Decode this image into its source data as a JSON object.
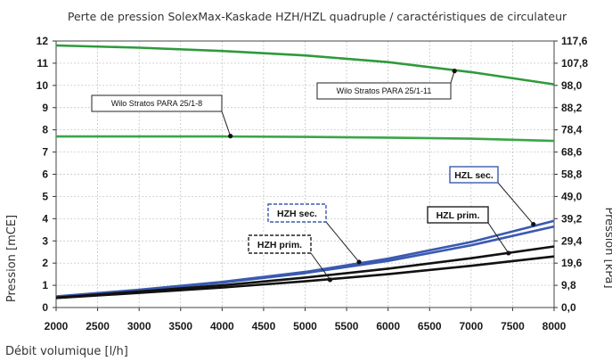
{
  "chart_data": {
    "type": "line",
    "title": "Perte de pression SolexMax-Kaskade HZH/HZL quadruple / caractéristiques de circulateur",
    "xlabel": "Débit volumique [l/h]",
    "ylabel": "Pression [mCE]",
    "y2label": "Pression [kPa]",
    "xlim": [
      2000,
      8000
    ],
    "ylim": [
      0,
      12
    ],
    "x_ticks": [
      "2000",
      "2500",
      "3000",
      "3500",
      "4000",
      "4500",
      "5000",
      "5500",
      "6000",
      "6500",
      "7000",
      "7500",
      "8000"
    ],
    "y_ticks": [
      "0",
      "1",
      "2",
      "3",
      "4",
      "5",
      "6",
      "7",
      "8",
      "9",
      "10",
      "11",
      "12"
    ],
    "y2_ticks": [
      "0,0",
      "9,8",
      "19,6",
      "29,4",
      "39,2",
      "49,0",
      "58,8",
      "68,6",
      "78,4",
      "88,2",
      "98,0",
      "107,8",
      "117,6"
    ],
    "grid": true,
    "series": [
      {
        "name": "Wilo Stratos PARA 25/1-11",
        "color": "#2e9a3c",
        "style": "solid",
        "points": [
          [
            2000,
            11.8
          ],
          [
            3000,
            11.7
          ],
          [
            4000,
            11.55
          ],
          [
            5000,
            11.35
          ],
          [
            6000,
            11.05
          ],
          [
            7000,
            10.6
          ],
          [
            8000,
            10.05
          ]
        ]
      },
      {
        "name": "Wilo Stratos PARA 25/1-8",
        "color": "#3aa548",
        "style": "solid",
        "points": [
          [
            2000,
            7.7
          ],
          [
            3000,
            7.7
          ],
          [
            4000,
            7.7
          ],
          [
            5000,
            7.68
          ],
          [
            6000,
            7.65
          ],
          [
            7000,
            7.6
          ],
          [
            8000,
            7.5
          ]
        ]
      },
      {
        "name": "HZL sec.",
        "color": "#3a5ab0",
        "style": "solid",
        "points": [
          [
            2000,
            0.5
          ],
          [
            3000,
            0.8
          ],
          [
            4000,
            1.15
          ],
          [
            5000,
            1.6
          ],
          [
            6000,
            2.2
          ],
          [
            7000,
            2.95
          ],
          [
            8000,
            3.9
          ]
        ]
      },
      {
        "name": "HZH sec.",
        "color": "#3a5ab0",
        "style": "solid",
        "points": [
          [
            2000,
            0.48
          ],
          [
            3000,
            0.78
          ],
          [
            4000,
            1.12
          ],
          [
            5000,
            1.55
          ],
          [
            6000,
            2.1
          ],
          [
            7000,
            2.8
          ],
          [
            8000,
            3.65
          ]
        ]
      },
      {
        "name": "HZL prim.",
        "color": "#111111",
        "style": "solid",
        "points": [
          [
            2000,
            0.45
          ],
          [
            3000,
            0.72
          ],
          [
            4000,
            1.0
          ],
          [
            5000,
            1.35
          ],
          [
            6000,
            1.75
          ],
          [
            7000,
            2.22
          ],
          [
            8000,
            2.75
          ]
        ]
      },
      {
        "name": "HZH prim.",
        "color": "#111111",
        "style": "solid",
        "points": [
          [
            2000,
            0.43
          ],
          [
            3000,
            0.66
          ],
          [
            4000,
            0.9
          ],
          [
            5000,
            1.18
          ],
          [
            6000,
            1.5
          ],
          [
            7000,
            1.88
          ],
          [
            8000,
            2.3
          ]
        ]
      }
    ],
    "annotations": [
      {
        "text": "Wilo Stratos PARA 25/1-8",
        "target": [
          4100,
          7.72
        ],
        "border": "solid",
        "bold": false
      },
      {
        "text": "Wilo Stratos PARA 25/1-11",
        "target": [
          6800,
          10.65
        ],
        "border": "solid",
        "bold": false
      },
      {
        "text": "HZL sec.",
        "target": [
          7750,
          3.75
        ],
        "border": "solid",
        "color": "#3a5ab0",
        "bold": true
      },
      {
        "text": "HZH sec.",
        "target": [
          5650,
          2.05
        ],
        "border": "dashed",
        "color": "#3a5ab0",
        "bold": true
      },
      {
        "text": "HZL prim.",
        "target": [
          7450,
          2.45
        ],
        "border": "solid",
        "bold": true
      },
      {
        "text": "HZH prim.",
        "target": [
          5300,
          1.25
        ],
        "border": "dashed",
        "bold": true
      }
    ]
  }
}
